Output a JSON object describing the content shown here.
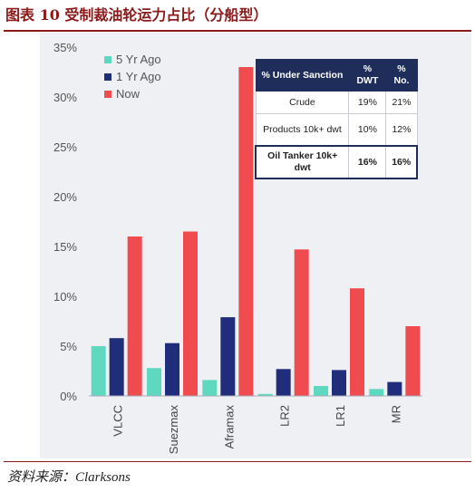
{
  "figure_title": "图表 10   受制裁油轮运力占比（分船型）",
  "source": "资料来源：Clarksons",
  "colors": {
    "five_yr": "#5ED9C0",
    "one_yr": "#1F2D7A",
    "now": "#F04B4F",
    "header_bg": "#1F2D5A",
    "title": "#8B1A1A"
  },
  "chart_data": {
    "type": "bar",
    "categories": [
      "VLCC",
      "Suezmax",
      "Aframax",
      "LR2",
      "LR1",
      "MR"
    ],
    "series": [
      {
        "name": "5 Yr Ago",
        "color": "#5ED9C0",
        "values": [
          5.0,
          2.8,
          1.6,
          0.2,
          1.0,
          0.7
        ]
      },
      {
        "name": "1 Yr Ago",
        "color": "#1F2D7A",
        "values": [
          5.8,
          5.3,
          7.9,
          2.7,
          2.6,
          1.4
        ]
      },
      {
        "name": "Now",
        "color": "#F04B4F",
        "values": [
          16.0,
          16.5,
          33.0,
          14.7,
          10.8,
          7.0
        ]
      }
    ],
    "yticks": [
      "0%",
      "5%",
      "10%",
      "15%",
      "20%",
      "25%",
      "30%",
      "35%"
    ],
    "ylim": [
      0,
      35
    ],
    "legend_position": "top-left",
    "grid": false
  },
  "table": {
    "headers": [
      "% Under Sanction",
      "% DWT",
      "% No."
    ],
    "rows": [
      [
        "Crude",
        "19%",
        "21%"
      ],
      [
        "Products 10k+ dwt",
        "10%",
        "12%"
      ],
      [
        "Oil Tanker 10k+ dwt",
        "16%",
        "16%"
      ]
    ]
  }
}
